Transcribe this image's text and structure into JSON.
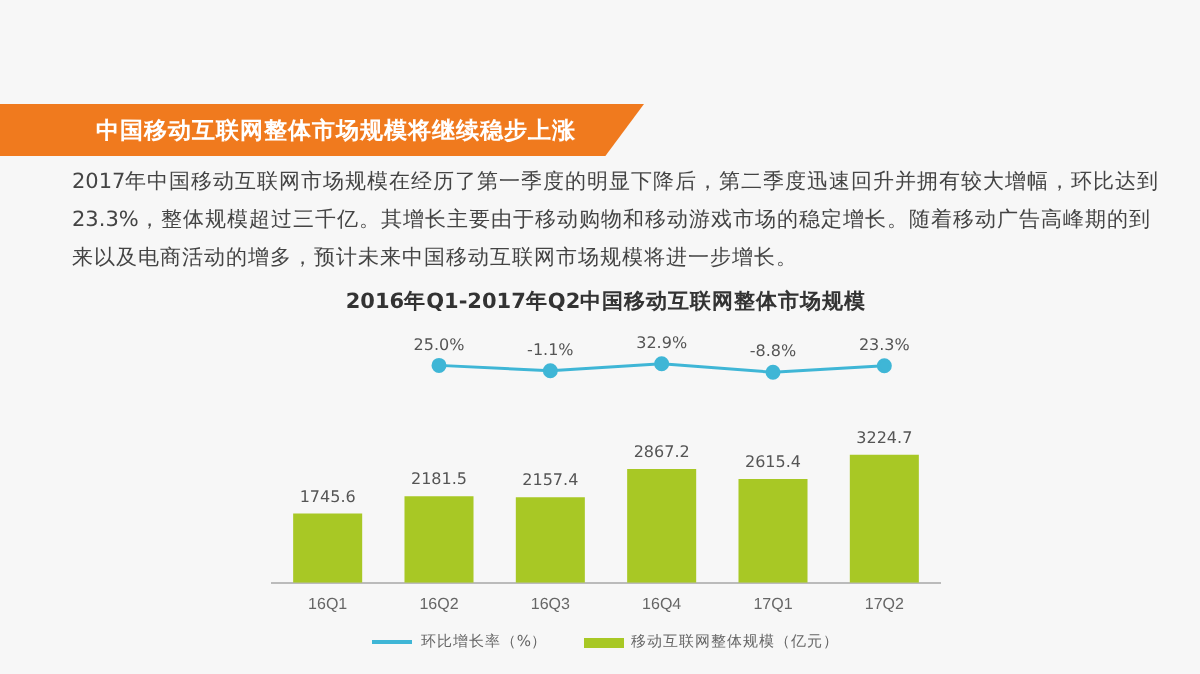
{
  "chart_data": [
    {
      "type": "line",
      "title": "2016年Q1-2017年Q2中国移动互联网整体市场规模",
      "annotations": [
        "中国移动互联网整体市场规模将继续稳步上涨",
        "2017年中国移动互联网市场规模在经历了第一季度的明显下降后，第二季度迅速回升并拥有较大增幅，环比达到23.3%，整体规模超过三千亿。其增长主要由于移动购物和移动游戏市场的稳定增长。随着移动广告高峰期的到来以及电商活动的增多，预计未来中国移动互联网市场规模将进一步增长。"
      ],
      "categories": [
        null,
        null,
        null,
        null,
        null,
        null
      ],
      "series": [
        {
          "name": "环比增长率（%）",
          "color": "#3fb6d6",
          "values": [
            null,
            25.0,
            -1.1,
            32.9,
            -8.8,
            23.3
          ],
          "value_labels": [
            null,
            "25.0%",
            "-1.1%",
            "32.9%",
            "-8.8%",
            "23.3%"
          ]
        }
      ],
      "marker": "circle",
      "tick_labels": false,
      "grid": false,
      "legend": "bottom"
    },
    {
      "type": "bar",
      "categories": [
        "16Q1",
        "16Q2",
        "16Q3",
        "16Q4",
        "17Q1",
        "17Q2"
      ],
      "series": [
        {
          "name": "移动互联网整体规模（亿元）",
          "color": "#a8c825",
          "values": [
            1745.6,
            2181.5,
            2157.4,
            2867.2,
            2615.4,
            3224.7
          ]
        }
      ],
      "data_labels": true,
      "tick_labels": "x",
      "grid": false,
      "legend": "bottom"
    }
  ]
}
